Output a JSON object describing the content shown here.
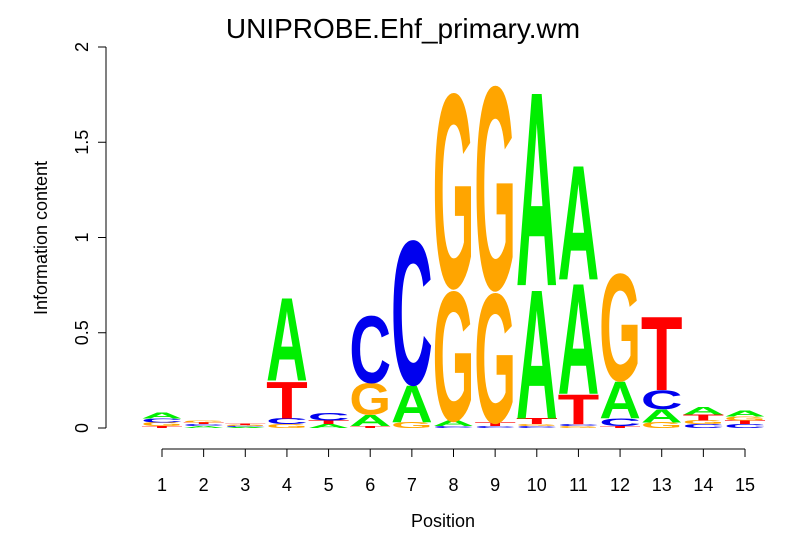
{
  "chart_data": {
    "type": "sequence-logo",
    "title": "UNIPROBE.Ehf_primary.wm",
    "xlabel": "Position",
    "ylabel": "Information content",
    "ylim": [
      0,
      2
    ],
    "y_ticks": [
      "0",
      "0.5",
      "1",
      "1.5",
      "2"
    ],
    "y_tick_values": [
      0,
      0.5,
      1,
      1.5,
      2
    ],
    "positions": [
      "1",
      "2",
      "3",
      "4",
      "5",
      "6",
      "7",
      "8",
      "9",
      "10",
      "11",
      "12",
      "13",
      "14",
      "15"
    ],
    "colors": {
      "A": "#00ee00",
      "C": "#0000ee",
      "G": "#ffa500",
      "T": "#ff0000"
    },
    "columns": [
      [
        {
          "l": "T",
          "h": 0.01
        },
        {
          "l": "G",
          "h": 0.02
        },
        {
          "l": "C",
          "h": 0.02
        },
        {
          "l": "A",
          "h": 0.03
        }
      ],
      [
        {
          "l": "A",
          "h": 0.01
        },
        {
          "l": "C",
          "h": 0.01
        },
        {
          "l": "T",
          "h": 0.01
        },
        {
          "l": "G",
          "h": 0.01
        }
      ],
      [
        {
          "l": "A",
          "h": 0.005
        },
        {
          "l": "C",
          "h": 0.005
        },
        {
          "l": "G",
          "h": 0.005
        },
        {
          "l": "T",
          "h": 0.005
        }
      ],
      [
        {
          "l": "G",
          "h": 0.02
        },
        {
          "l": "C",
          "h": 0.03
        },
        {
          "l": "T",
          "h": 0.2
        },
        {
          "l": "A",
          "h": 0.45
        }
      ],
      [
        {
          "l": "A",
          "h": 0.02
        },
        {
          "l": "T",
          "h": 0.02
        },
        {
          "l": "C",
          "h": 0.04
        }
      ],
      [
        {
          "l": "T",
          "h": 0.01
        },
        {
          "l": "A",
          "h": 0.06
        },
        {
          "l": "G",
          "h": 0.17
        },
        {
          "l": "C",
          "h": 0.36
        }
      ],
      [
        {
          "l": "G",
          "h": 0.03
        },
        {
          "l": "A",
          "h": 0.2
        },
        {
          "l": "C",
          "h": 0.78
        }
      ],
      [
        {
          "l": "C",
          "h": 0.01
        },
        {
          "l": "A",
          "h": 0.03
        },
        {
          "l": "G",
          "h": 0.7
        },
        {
          "l": "G",
          "h": 1.05
        }
      ],
      [
        {
          "l": "C",
          "h": 0.01
        },
        {
          "l": "T",
          "h": 0.02
        },
        {
          "l": "G",
          "h": 0.7
        },
        {
          "l": "G",
          "h": 1.1
        }
      ],
      [
        {
          "l": "C",
          "h": 0.01
        },
        {
          "l": "G",
          "h": 0.01
        },
        {
          "l": "T",
          "h": 0.03
        },
        {
          "l": "A",
          "h": 0.7
        },
        {
          "l": "A",
          "h": 1.05
        }
      ],
      [
        {
          "l": "G",
          "h": 0.01
        },
        {
          "l": "C",
          "h": 0.01
        },
        {
          "l": "T",
          "h": 0.16
        },
        {
          "l": "A",
          "h": 0.6
        },
        {
          "l": "A",
          "h": 0.62
        }
      ],
      [
        {
          "l": "T",
          "h": 0.01
        },
        {
          "l": "C",
          "h": 0.04
        },
        {
          "l": "A",
          "h": 0.2
        },
        {
          "l": "G",
          "h": 0.58
        }
      ],
      [
        {
          "l": "G",
          "h": 0.03
        },
        {
          "l": "A",
          "h": 0.07
        },
        {
          "l": "C",
          "h": 0.1
        },
        {
          "l": "T",
          "h": 0.4
        }
      ],
      [
        {
          "l": "C",
          "h": 0.02
        },
        {
          "l": "G",
          "h": 0.02
        },
        {
          "l": "T",
          "h": 0.03
        },
        {
          "l": "A",
          "h": 0.04
        }
      ],
      [
        {
          "l": "C",
          "h": 0.02
        },
        {
          "l": "T",
          "h": 0.02
        },
        {
          "l": "G",
          "h": 0.02
        },
        {
          "l": "A",
          "h": 0.03
        }
      ]
    ]
  }
}
